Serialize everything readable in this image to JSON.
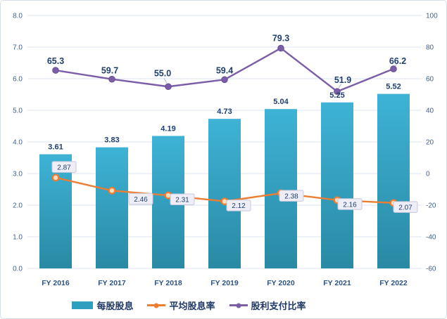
{
  "chart_data": {
    "type": "bar",
    "combo": "bar + two line series, dual y-axes",
    "categories": [
      "FY 2016",
      "FY 2017",
      "FY 2018",
      "FY 2019",
      "FY 2020",
      "FY 2021",
      "FY 2022"
    ],
    "series": [
      {
        "name": "每股股息",
        "type": "bar",
        "axis": "left",
        "values": [
          3.61,
          3.83,
          4.19,
          4.73,
          5.04,
          5.25,
          5.52
        ],
        "color": "#2f9fc0",
        "color_top": "#3eb3d6",
        "color_bottom": "#2a89a5"
      },
      {
        "name": "平均股息率",
        "type": "line",
        "axis": "left",
        "values": [
          2.87,
          2.46,
          2.31,
          2.12,
          2.38,
          2.16,
          2.07
        ],
        "color": "#ed7d31",
        "marker_fill": "#fbdcbd",
        "label_style": "boxed"
      },
      {
        "name": "股利支付比率",
        "type": "line",
        "axis": "right",
        "values": [
          65.3,
          59.7,
          55.0,
          59.4,
          79.3,
          51.9,
          66.2
        ],
        "color": "#7b5ea7",
        "marker_fill": "#7b5ea7",
        "label_style": "plain-bold"
      }
    ],
    "left_axis": {
      "min": 0,
      "max": 8,
      "step": 1,
      "tick_labels": [
        "0.0",
        "1.0",
        "2.0",
        "3.0",
        "4.0",
        "5.0",
        "6.0",
        "7.0",
        "8.0"
      ]
    },
    "right_axis": {
      "min": -60,
      "max": 100,
      "step": 20,
      "tick_labels": [
        "-60",
        "-40",
        "-20",
        "0",
        "20",
        "40",
        "60",
        "80",
        "100"
      ]
    },
    "grid": true,
    "legend_position": "bottom",
    "title": ""
  },
  "colors": {
    "grid": "#dbe5f2",
    "axis_text": "#3f5f8f",
    "x_label_text": "#2e5380",
    "bar_label_text": "#1f3e6e",
    "purple_label_text": "#21406e",
    "label_box_fill": "#efedf6",
    "label_box_border": "#c8c8da",
    "leader_line": "#a8bbd6",
    "background": "#ffffff",
    "frame_border": "#d6dfe9"
  }
}
